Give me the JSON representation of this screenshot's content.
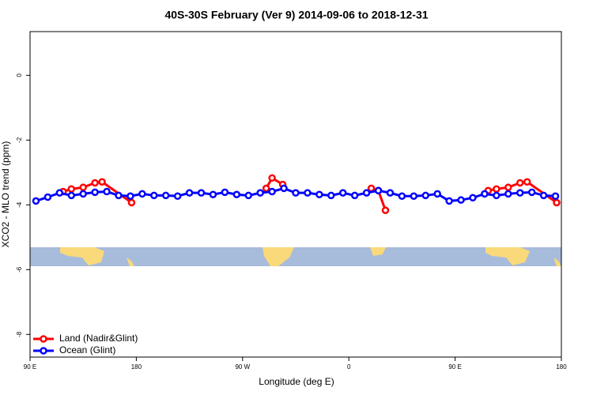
{
  "chart_data": {
    "type": "line",
    "title": "40S-30S February (Ver 9)   2014-09-06 to 2018-12-31",
    "xlabel": "Longitude (deg E)",
    "ylabel": "XCO2 - MLO trend (ppm)",
    "xlim": [
      90,
      540
    ],
    "xticks": [
      {
        "value": 90,
        "label": "90 E"
      },
      180,
      {
        "value": 270,
        "label": "90 W"
      },
      {
        "value": 360,
        "label": "0"
      },
      {
        "value": 450,
        "label": "90 E"
      },
      {
        "value": 540,
        "label": "180"
      }
    ],
    "ylim": [
      -8.7,
      1.35
    ],
    "yticks": [
      0,
      -2,
      -4,
      -6,
      -8
    ],
    "legend": "bottom-left",
    "series": [
      {
        "name": "Land (Nadir&Glint)",
        "color": "#ff0000",
        "x": [
          118,
          125,
          135,
          145,
          151,
          176,
          200,
          290,
          295,
          304,
          340,
          379,
          385,
          391,
          430,
          478,
          485,
          495,
          505,
          511,
          536
        ],
        "values": [
          -3.59,
          -3.51,
          -3.46,
          -3.32,
          -3.29,
          -3.93,
          null,
          -3.49,
          -3.17,
          -3.37,
          null,
          -3.49,
          -3.56,
          -4.17,
          null,
          -3.56,
          -3.51,
          -3.46,
          -3.32,
          -3.29,
          -3.93
        ]
      },
      {
        "name": "Ocean (Glint)",
        "color": "#0000ff",
        "x": [
          95,
          105,
          115,
          125,
          135,
          145,
          155,
          165,
          175,
          185,
          195,
          205,
          215,
          225,
          235,
          245,
          255,
          265,
          275,
          285,
          295,
          305,
          315,
          325,
          335,
          345,
          355,
          365,
          375,
          385,
          395,
          405,
          415,
          425,
          435,
          445,
          455,
          465,
          475,
          485,
          495,
          505,
          515,
          525,
          535
        ],
        "values": [
          -3.88,
          -3.76,
          -3.63,
          -3.71,
          -3.66,
          -3.61,
          -3.59,
          -3.71,
          -3.73,
          -3.66,
          -3.71,
          -3.71,
          -3.73,
          -3.63,
          -3.63,
          -3.68,
          -3.61,
          -3.68,
          -3.71,
          -3.63,
          -3.59,
          -3.49,
          -3.63,
          -3.63,
          -3.68,
          -3.71,
          -3.63,
          -3.71,
          -3.63,
          -3.56,
          -3.63,
          -3.73,
          -3.73,
          -3.71,
          -3.66,
          -3.88,
          -3.85,
          -3.78,
          -3.66,
          -3.71,
          -3.66,
          -3.63,
          -3.61,
          -3.71,
          -3.73
        ]
      }
    ]
  }
}
